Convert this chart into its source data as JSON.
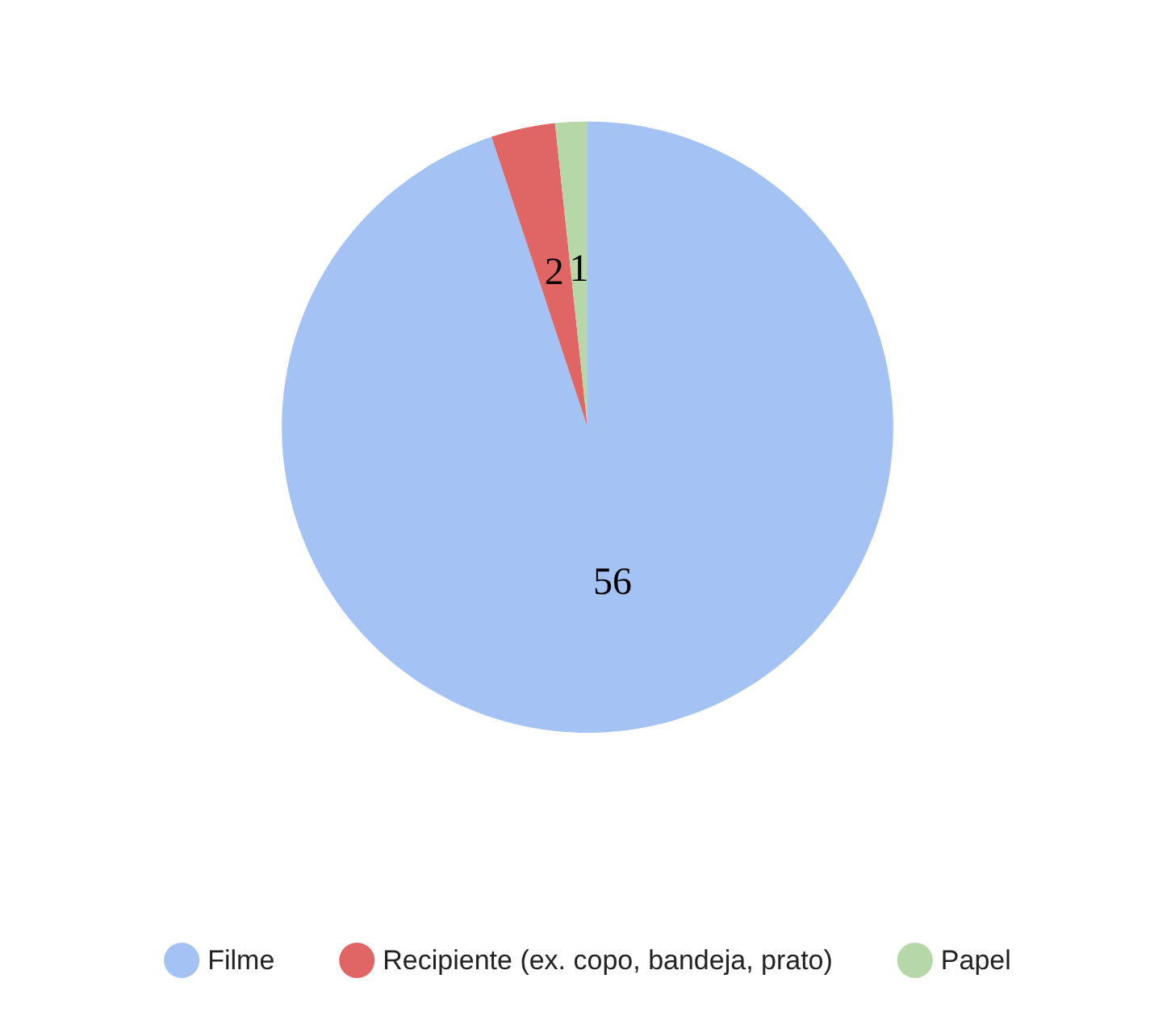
{
  "chart_data": {
    "type": "pie",
    "categories": [
      "Filme",
      "Recipiente (ex. copo, bandeja, prato)",
      "Papel"
    ],
    "values": [
      56,
      2,
      1
    ],
    "colors": [
      "#a4c2f4",
      "#e06666",
      "#b6d7a8"
    ],
    "data_labels": true,
    "legend": "bottom"
  }
}
